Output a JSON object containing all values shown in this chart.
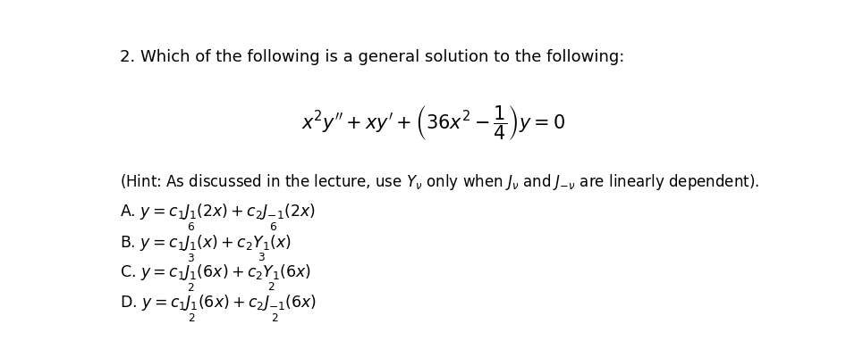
{
  "background_color": "#ffffff",
  "title_text": "2. Which of the following is a general solution to the following:",
  "text_color": "#000000",
  "figsize": [
    9.46,
    3.82
  ],
  "dpi": 100
}
